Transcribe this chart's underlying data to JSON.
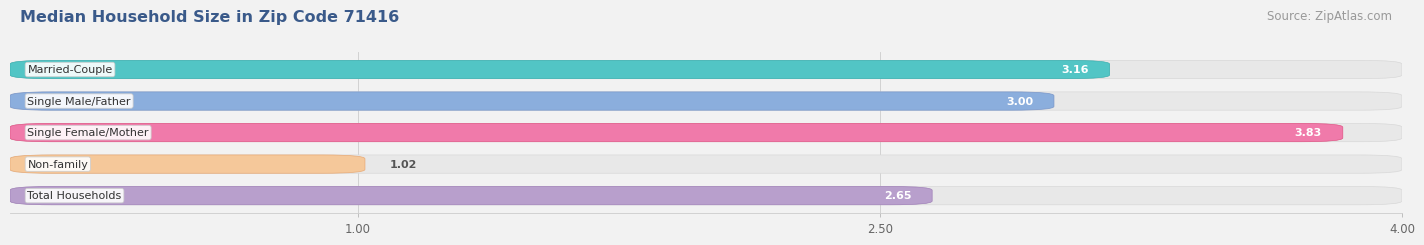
{
  "title": "Median Household Size in Zip Code 71416",
  "source": "Source: ZipAtlas.com",
  "categories": [
    "Married-Couple",
    "Single Male/Father",
    "Single Female/Mother",
    "Non-family",
    "Total Households"
  ],
  "values": [
    3.16,
    3.0,
    3.83,
    1.02,
    2.65
  ],
  "bar_colors": [
    "#52C5C5",
    "#8BAEDD",
    "#F07AAA",
    "#F5C89A",
    "#B89FCC"
  ],
  "bar_edge_colors": [
    "#3AAFAF",
    "#7A96C8",
    "#E05585",
    "#E8AA75",
    "#A080B8"
  ],
  "value_labels": [
    "3.16",
    "3.00",
    "3.83",
    "1.02",
    "2.65"
  ],
  "xmin": 0.0,
  "xmax": 4.0,
  "xticks": [
    1.0,
    2.5,
    4.0
  ],
  "xtick_labels": [
    "1.00",
    "2.50",
    "4.00"
  ],
  "title_color": "#3A5A8A",
  "title_fontsize": 11.5,
  "source_fontsize": 8.5,
  "label_fontsize": 8,
  "value_fontsize": 8,
  "background_color": "#F2F2F2",
  "bar_bg_color": "#E8E8E8"
}
